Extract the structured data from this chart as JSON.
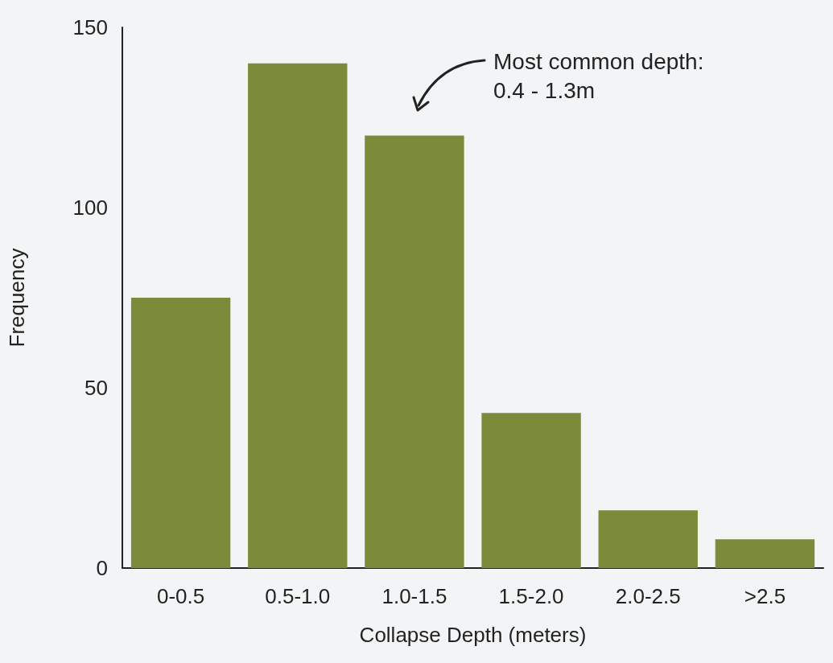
{
  "chart_data": {
    "type": "bar",
    "xlabel": "Collapse Depth (meters)",
    "ylabel": "Frequency",
    "categories": [
      "0-0.5",
      "0.5-1.0",
      "1.0-1.5",
      "1.5-2.0",
      "2.0-2.5",
      ">2.5"
    ],
    "values": [
      75,
      140,
      120,
      43,
      16,
      8
    ],
    "color": "#7a8c3a",
    "ylim": [
      0,
      150
    ],
    "yticks": [
      0,
      50,
      100,
      150
    ],
    "grid": false,
    "annotations": [
      "Most common depth:\n0.4 - 1.3m"
    ]
  }
}
